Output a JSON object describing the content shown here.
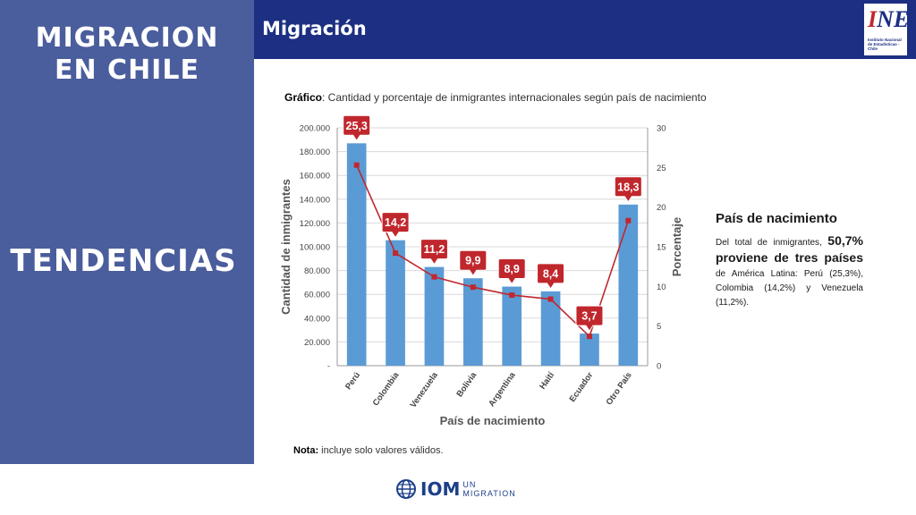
{
  "left_panel": {
    "title_line1": "MIGRACION",
    "title_line2": "EN CHILE",
    "subtitle": "TENDENCIAS"
  },
  "header": {
    "title": "Migración",
    "logo_letters": "INE",
    "logo_subtitle": "Instituto Nacional de Estadísticas - Chile"
  },
  "caption": {
    "bold": "Gráfico",
    "text": ": Cantidad y porcentaje de inmigrantes internacionales según país de nacimiento"
  },
  "note": {
    "bold": "Nota:",
    "text": " incluye solo valores válidos."
  },
  "side": {
    "heading": "País de nacimiento",
    "p1": "Del total de inmigrantes,",
    "highlight1": "50,7%",
    "highlight2": "proviene de tres países",
    "p2": "de América Latina: Perú (25,3%), Colombia (14,2%) y Venezuela (11,2%)."
  },
  "footer": {
    "iom": "IOM",
    "un": "UN",
    "migration": "MIGRATION"
  },
  "colors": {
    "panel": "#4a5d9c",
    "header": "#1c2f82",
    "bar": "#5b9bd5",
    "line": "#c0272d"
  },
  "chart_data": {
    "type": "bar",
    "title": "",
    "xlabel": "País de nacimiento",
    "ylabel": "Cantidad  de inmigrantes",
    "y2label": "Porcentaje",
    "categories": [
      "Perú",
      "Colombia",
      "Venezuela",
      "Bolivia",
      "Argentina",
      "Haití",
      "Ecuador",
      "Otro País"
    ],
    "ylim": [
      0,
      200000
    ],
    "y_ticks": [
      "-",
      "20.000",
      "40.000",
      "60.000",
      "80.000",
      "100.000",
      "120.000",
      "140.000",
      "160.000",
      "180.000",
      "200.000"
    ],
    "y2lim": [
      0,
      30
    ],
    "y2_ticks": [
      "0",
      "5",
      "10",
      "15",
      "20",
      "25",
      "30"
    ],
    "grid": true,
    "series": [
      {
        "name": "Cantidad de inmigrantes",
        "kind": "bar",
        "axis": "left",
        "values": [
          187000,
          105500,
          83000,
          73500,
          66500,
          62500,
          27000,
          135500
        ]
      },
      {
        "name": "Porcentaje",
        "kind": "line",
        "axis": "right",
        "values": [
          25.3,
          14.2,
          11.2,
          9.9,
          8.9,
          8.4,
          3.7,
          18.3
        ],
        "labels": [
          "25,3",
          "14,2",
          "11,2",
          "9,9",
          "8,9",
          "8,4",
          "3,7",
          "18,3"
        ]
      }
    ]
  }
}
